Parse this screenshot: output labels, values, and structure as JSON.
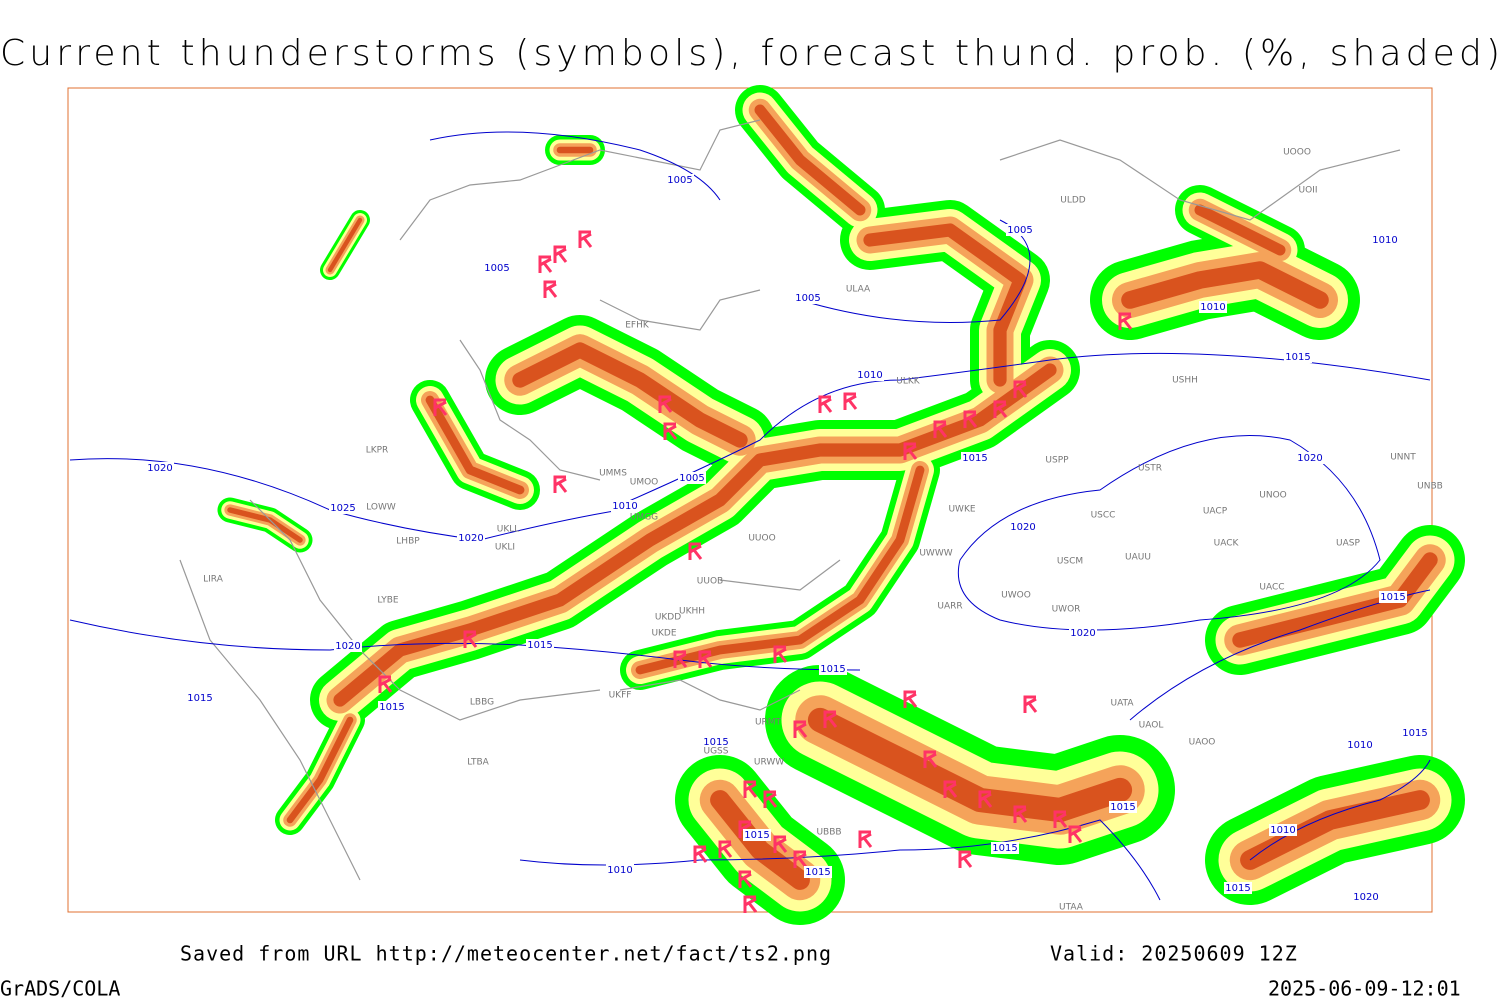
{
  "header": {
    "title": "Current thunderstorms (symbols), forecast thund. prob. (%, shaded)"
  },
  "footer": {
    "source": "Saved from URL http://meteocenter.net/fact/ts2.png",
    "valid": "Valid: 20250609 12Z",
    "software": "GrADS/COLA",
    "timestamp": "2025-06-09-12:01"
  },
  "isobar_labels": [
    "1005",
    "1005",
    "1005",
    "1005",
    "1010",
    "1010",
    "1010",
    "1010",
    "1015",
    "1015",
    "1005",
    "1020",
    "1025",
    "1020",
    "1020",
    "1020",
    "1015",
    "1020",
    "1015",
    "1015",
    "1015",
    "1020",
    "1015",
    "1015",
    "1015",
    "1015",
    "1015",
    "1015",
    "1010",
    "1010",
    "1015",
    "1010",
    "1015",
    "1020"
  ],
  "station_labels": [
    "ULAA",
    "ULKK",
    "ULDD",
    "UOOO",
    "UOII",
    "USHH",
    "USPP",
    "USTR",
    "UNNT",
    "UNBB",
    "UNOO",
    "UACP",
    "USCC",
    "UACK",
    "UASP",
    "UAUU",
    "USCM",
    "UACC",
    "UWOO",
    "UWOR",
    "UARR",
    "UWWW",
    "UWKE",
    "UUOO",
    "UUOB",
    "UKHH",
    "UKDD",
    "UKDE",
    "UKFF",
    "UMMS",
    "UMOO",
    "UMGG",
    "UKLL",
    "UKLI",
    "LKPR",
    "LOWW",
    "LHBP",
    "LIRA",
    "LYBE",
    "LBBG",
    "LTBA",
    "UATA",
    "UAOL",
    "UAOO",
    "URMT",
    "URWW",
    "UGSS",
    "UBBB",
    "UTAA",
    "EFHK"
  ]
}
